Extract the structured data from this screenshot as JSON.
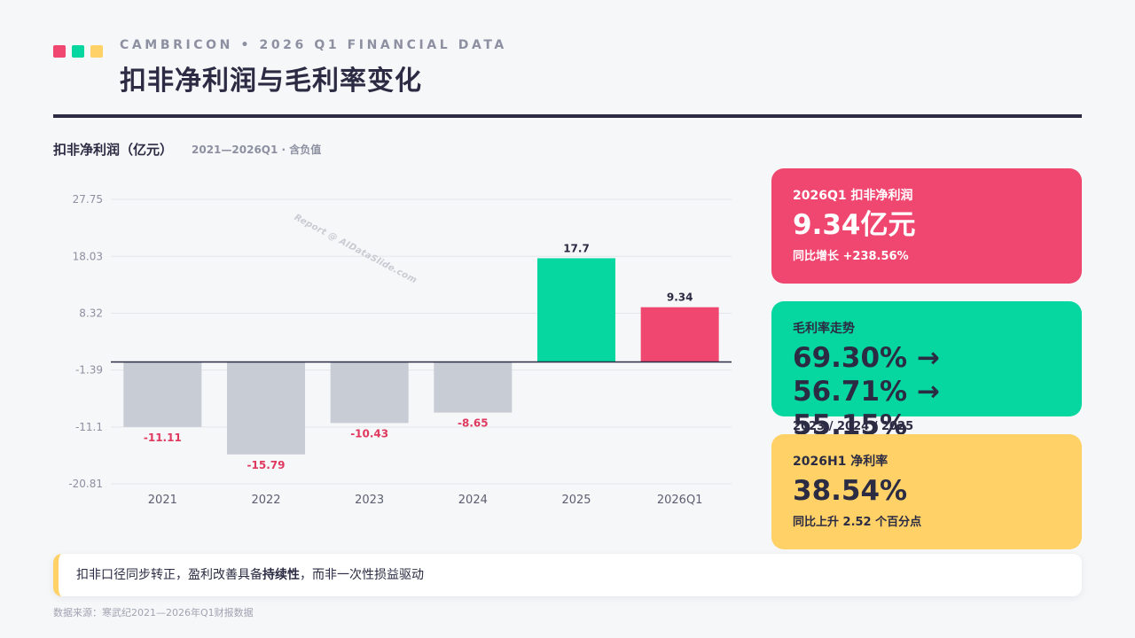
{
  "header": {
    "kicker": "CAMBRICON • 2026 Q1 FINANCIAL DATA",
    "title": "扣非净利润与毛利率变化",
    "accent_colors": [
      "#f04770",
      "#06d6a0",
      "#ffd166"
    ]
  },
  "chart_section": {
    "title": "扣非净利润（亿元）",
    "subtitle": "2021—2026Q1 · 含负值",
    "watermark": "Report @ AIDataSlide.com"
  },
  "chart_data": {
    "type": "bar",
    "title": "扣非净利润（亿元）",
    "xlabel": "",
    "ylabel": "",
    "categories": [
      "2021",
      "2022",
      "2023",
      "2024",
      "2025",
      "2026Q1"
    ],
    "values": [
      -11.11,
      -15.79,
      -10.43,
      -8.65,
      17.7,
      9.34
    ],
    "value_labels": [
      "-11.11",
      "-15.79",
      "-10.43",
      "-8.65",
      "17.7",
      "9.34"
    ],
    "ylim": [
      -20.81,
      27.75
    ],
    "yticks": [
      27.75,
      18.03,
      8.32,
      -1.39,
      -11.1,
      -20.81
    ],
    "ytick_labels": [
      "27.75",
      "18.03",
      "8.32",
      "-1.39",
      "-11.1",
      "-20.81"
    ],
    "bar_colors": [
      "#c8ccd5",
      "#c8ccd5",
      "#c8ccd5",
      "#c8ccd5",
      "#06d6a0",
      "#f04770"
    ],
    "negative_label_color": "#e0395f",
    "grid": true
  },
  "cards": [
    {
      "label": "2026Q1 扣非净利润",
      "value": "9.34亿元",
      "note": "同比增长 +238.56%"
    },
    {
      "label": "毛利率走势",
      "value": "69.30% → 56.71% → 55.15%",
      "note": "2023 / 2024 / 2025"
    },
    {
      "label": "2026H1 净利率",
      "value": "38.54%",
      "note": "同比上升 2.52 个百分点"
    }
  ],
  "insight": {
    "pre": "扣非口径同步转正，盈利改善具备",
    "bold": "持续性",
    "post": "，而非一次性损益驱动"
  },
  "source": "数据来源：寒武纪2021—2026年Q1财报数据"
}
